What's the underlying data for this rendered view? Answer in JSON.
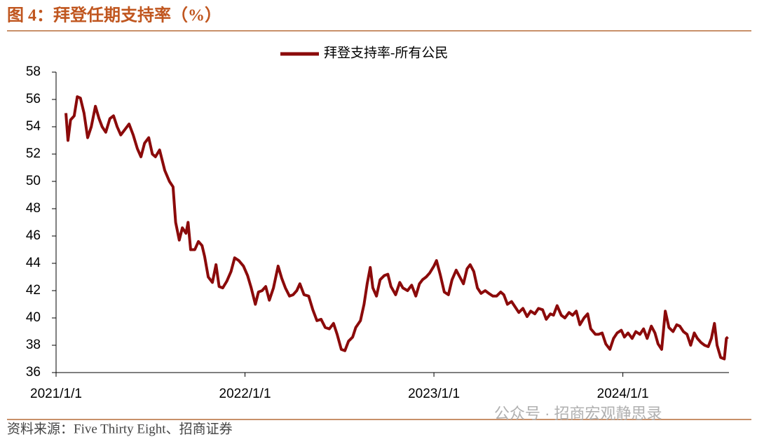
{
  "chart_data": {
    "type": "line",
    "title": "图 4：拜登任期支持率（%）",
    "source": "资料来源：Five Thirty Eight、招商证券",
    "watermark": "公众号 · 招商宏观静思录",
    "xlim": [
      "2021-01-01",
      "2024-07-24"
    ],
    "xticks": [
      {
        "value": "2021-01-01",
        "label": "2021/1/1"
      },
      {
        "value": "2022-01-01",
        "label": "2022/1/1"
      },
      {
        "value": "2023-01-01",
        "label": "2023/1/1"
      },
      {
        "value": "2024-01-01",
        "label": "2024/1/1"
      }
    ],
    "ylim": [
      36,
      58
    ],
    "yticks": [
      36,
      38,
      40,
      42,
      44,
      46,
      48,
      50,
      52,
      54,
      56,
      58
    ],
    "legend": "top",
    "x": [
      "2021-01-20",
      "2021-01-24",
      "2021-01-29",
      "2021-02-05",
      "2021-02-11",
      "2021-02-17",
      "2021-02-24",
      "2021-03-03",
      "2021-03-10",
      "2021-03-18",
      "2021-03-25",
      "2021-03-31",
      "2021-04-07",
      "2021-04-15",
      "2021-04-22",
      "2021-04-29",
      "2021-05-06",
      "2021-05-14",
      "2021-05-22",
      "2021-05-30",
      "2021-06-07",
      "2021-06-14",
      "2021-06-21",
      "2021-06-29",
      "2021-07-06",
      "2021-07-12",
      "2021-07-20",
      "2021-07-30",
      "2021-08-08",
      "2021-08-15",
      "2021-08-20",
      "2021-08-27",
      "2021-09-02",
      "2021-09-09",
      "2021-09-13",
      "2021-09-18",
      "2021-09-26",
      "2021-10-03",
      "2021-10-10",
      "2021-10-15",
      "2021-10-22",
      "2021-10-30",
      "2021-11-06",
      "2021-11-12",
      "2021-11-19",
      "2021-11-27",
      "2021-12-05",
      "2021-12-12",
      "2021-12-20",
      "2021-12-29",
      "2022-01-06",
      "2022-01-13",
      "2022-01-21",
      "2022-01-27",
      "2022-02-03",
      "2022-02-10",
      "2022-02-17",
      "2022-02-25",
      "2022-03-06",
      "2022-03-13",
      "2022-03-20",
      "2022-03-28",
      "2022-04-04",
      "2022-04-11",
      "2022-04-17",
      "2022-04-25",
      "2022-05-04",
      "2022-05-12",
      "2022-05-20",
      "2022-05-28",
      "2022-06-05",
      "2022-06-13",
      "2022-06-21",
      "2022-06-28",
      "2022-07-06",
      "2022-07-13",
      "2022-07-20",
      "2022-07-28",
      "2022-08-03",
      "2022-08-12",
      "2022-08-19",
      "2022-08-25",
      "2022-08-31",
      "2022-09-05",
      "2022-09-12",
      "2022-09-19",
      "2022-09-27",
      "2022-10-04",
      "2022-10-10",
      "2022-10-19",
      "2022-10-27",
      "2022-11-02",
      "2022-11-11",
      "2022-11-19",
      "2022-11-27",
      "2022-12-04",
      "2022-12-10",
      "2022-12-17",
      "2022-12-24",
      "2023-01-01",
      "2023-01-06",
      "2023-01-13",
      "2023-01-21",
      "2023-01-29",
      "2023-02-05",
      "2023-02-13",
      "2023-02-20",
      "2023-02-27",
      "2023-03-06",
      "2023-03-12",
      "2023-03-19",
      "2023-03-26",
      "2023-04-02",
      "2023-04-10",
      "2023-04-17",
      "2023-04-25",
      "2023-05-02",
      "2023-05-10",
      "2023-05-16",
      "2023-05-23",
      "2023-05-31",
      "2023-06-07",
      "2023-06-14",
      "2023-06-22",
      "2023-06-30",
      "2023-07-07",
      "2023-07-15",
      "2023-07-22",
      "2023-07-30",
      "2023-08-06",
      "2023-08-14",
      "2023-08-20",
      "2023-08-27",
      "2023-09-04",
      "2023-09-11",
      "2023-09-19",
      "2023-09-26",
      "2023-10-03",
      "2023-10-10",
      "2023-10-18",
      "2023-10-25",
      "2023-10-31",
      "2023-11-09",
      "2023-11-15",
      "2023-11-22",
      "2023-11-29",
      "2023-12-07",
      "2023-12-14",
      "2023-12-21",
      "2023-12-29",
      "2024-01-04",
      "2024-01-11",
      "2024-01-19",
      "2024-01-26",
      "2024-02-03",
      "2024-02-10",
      "2024-02-17",
      "2024-02-25",
      "2024-03-03",
      "2024-03-09",
      "2024-03-16",
      "2024-03-23",
      "2024-03-30",
      "2024-04-07",
      "2024-04-14",
      "2024-04-20",
      "2024-04-27",
      "2024-05-04",
      "2024-05-11",
      "2024-05-18",
      "2024-05-24",
      "2024-05-31",
      "2024-06-07",
      "2024-06-14",
      "2024-06-20",
      "2024-06-26",
      "2024-07-01",
      "2024-07-08",
      "2024-07-15",
      "2024-07-19",
      "2024-07-22"
    ],
    "series": [
      {
        "name": "拜登支持率-所有公民",
        "color": "#8b0a0a",
        "values": [
          55.0,
          53.0,
          54.5,
          54.8,
          56.2,
          56.1,
          55.0,
          53.2,
          54.0,
          55.5,
          54.6,
          54.0,
          53.6,
          54.6,
          54.8,
          54.0,
          53.4,
          53.8,
          54.2,
          53.4,
          52.4,
          51.8,
          52.8,
          53.2,
          52.0,
          51.8,
          52.3,
          50.8,
          50.0,
          49.6,
          47.0,
          45.7,
          46.6,
          46.2,
          47.0,
          45.0,
          45.0,
          45.6,
          45.3,
          44.5,
          43.0,
          42.6,
          43.9,
          42.3,
          42.2,
          42.7,
          43.4,
          44.4,
          44.2,
          43.8,
          43.1,
          42.2,
          41.0,
          41.9,
          42.0,
          42.3,
          41.3,
          42.2,
          43.8,
          42.9,
          42.2,
          41.6,
          41.7,
          42.0,
          42.5,
          41.7,
          41.6,
          40.6,
          39.8,
          39.9,
          39.3,
          39.2,
          39.6,
          38.8,
          37.7,
          37.6,
          38.3,
          38.6,
          39.3,
          39.8,
          41.0,
          42.5,
          43.7,
          42.2,
          41.6,
          42.8,
          43.1,
          43.2,
          42.3,
          41.7,
          42.6,
          42.2,
          42.0,
          42.4,
          41.6,
          42.5,
          42.8,
          43.0,
          43.3,
          43.8,
          44.2,
          43.2,
          41.9,
          41.7,
          42.8,
          43.5,
          43.0,
          42.5,
          43.6,
          43.9,
          43.4,
          42.2,
          41.8,
          42.0,
          41.8,
          41.6,
          41.6,
          41.9,
          41.7,
          41.0,
          41.2,
          40.8,
          40.4,
          40.7,
          40.1,
          40.5,
          40.3,
          40.7,
          40.6,
          39.9,
          40.3,
          40.2,
          40.9,
          40.2,
          40.0,
          40.4,
          40.2,
          40.5,
          39.5,
          40.0,
          40.3,
          39.2,
          38.8,
          38.8,
          38.9,
          38.1,
          37.7,
          38.5,
          38.9,
          39.1,
          38.6,
          38.9,
          38.5,
          39.0,
          38.8,
          39.2,
          38.5,
          39.4,
          38.9,
          38.1,
          37.7,
          40.5,
          39.3,
          39.0,
          39.5,
          39.4,
          39.0,
          38.8,
          38.0,
          38.9,
          38.5,
          38.2,
          38.0,
          37.9,
          38.5,
          39.6,
          38.0,
          37.1,
          37.0,
          38.5,
          38.6
        ]
      }
    ]
  }
}
